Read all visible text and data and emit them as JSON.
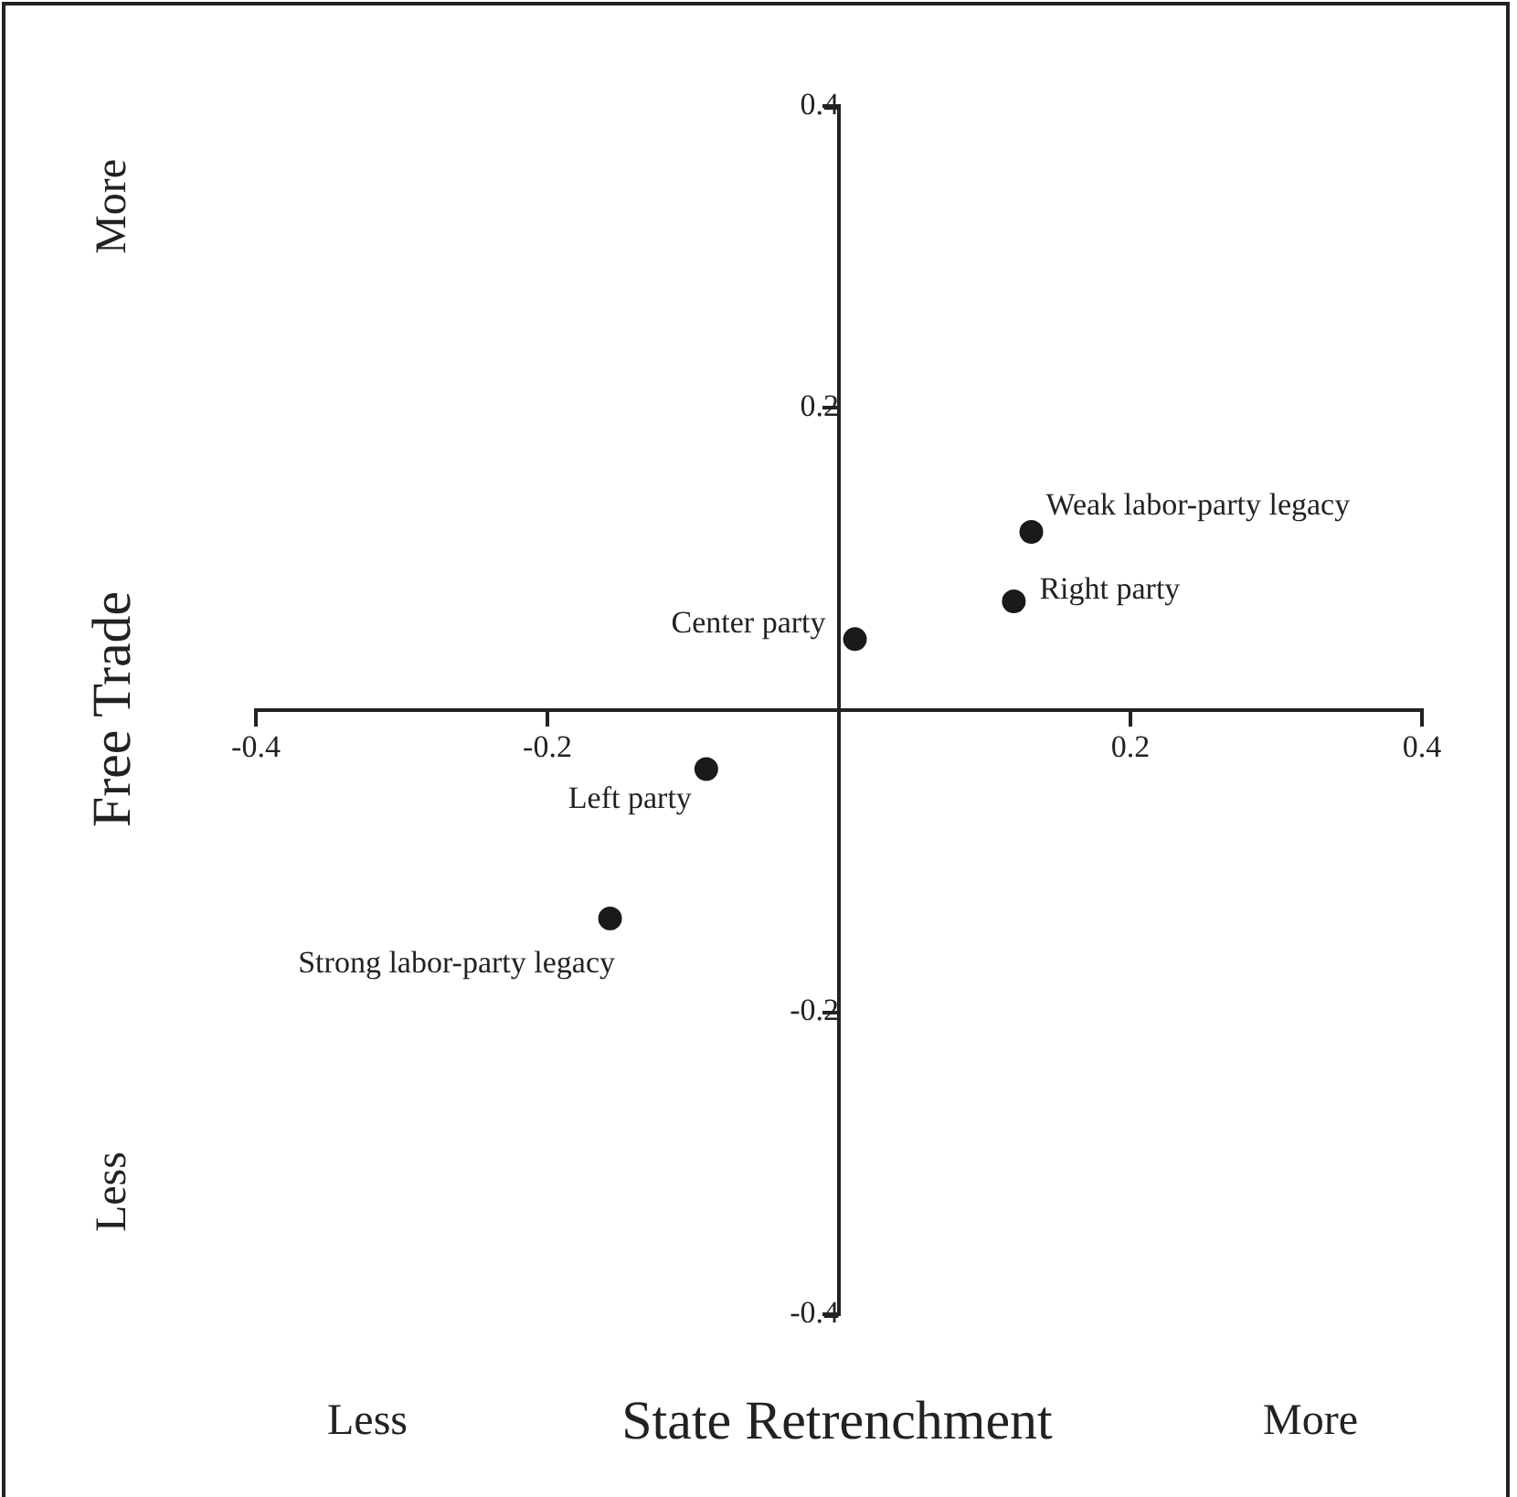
{
  "chart_data": {
    "type": "scatter",
    "xlabel": "State Retrenchment",
    "ylabel": "Free Trade",
    "x": [
      0.132,
      0.12,
      0.011,
      -0.091,
      -0.157
    ],
    "values": [
      0.118,
      0.072,
      0.047,
      -0.039,
      -0.138
    ],
    "color": "#1a1a1a",
    "marker": "circle",
    "grid": false,
    "legend": false,
    "xlim": [
      -0.4,
      0.4
    ],
    "ylim": [
      -0.4,
      0.4
    ],
    "xticks": [
      -0.4,
      -0.2,
      0.2,
      0.4
    ],
    "yticks": [
      -0.4,
      -0.2,
      0.2,
      0.4
    ],
    "annotations": [
      {
        "text": "Weak labor-party legacy",
        "x": 0.132,
        "y": 0.118
      },
      {
        "text": "Right party",
        "x": 0.12,
        "y": 0.072
      },
      {
        "text": "Center party",
        "x": 0.011,
        "y": 0.047
      },
      {
        "text": "Left party",
        "x": -0.091,
        "y": -0.039
      },
      {
        "text": "Strong labor-party legacy",
        "x": -0.157,
        "y": -0.138
      },
      "More",
      "Less",
      "Less",
      "More"
    ]
  }
}
